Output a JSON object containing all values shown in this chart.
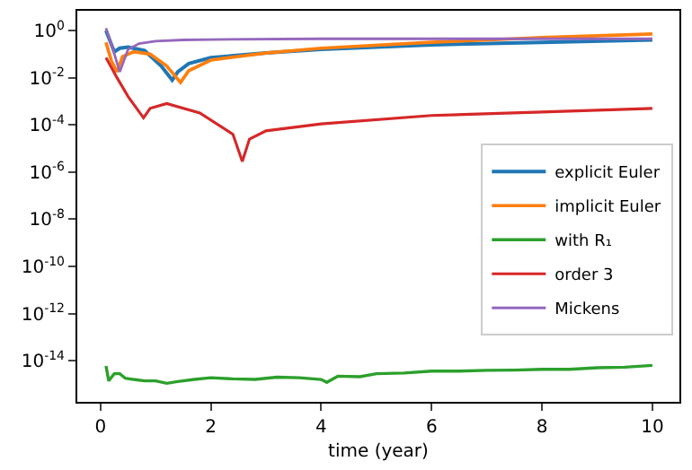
{
  "chart_data": {
    "type": "line",
    "xlabel": "time (year)",
    "log": "y",
    "legend": "right",
    "marker": "none",
    "line_style": "solid",
    "xlim": [
      -0.42,
      10.49
    ],
    "xticks": [
      0,
      2,
      4,
      6,
      8,
      10
    ],
    "ylim": [
      1.8e-16,
      6.9
    ],
    "yticks": [
      {
        "value": 1,
        "label": "10$^{0}$"
      },
      {
        "value": 0.01,
        "label": "10$^{-2}$"
      },
      {
        "value": 0.0001,
        "label": "10$^{-4}$"
      },
      {
        "value": 1e-06,
        "label": "10$^{-6}$"
      },
      {
        "value": 1e-08,
        "label": "10$^{-8}$"
      },
      {
        "value": 1e-10,
        "label": "10$^{-10}$"
      },
      {
        "value": 1e-12,
        "label": "10$^{-12}$"
      },
      {
        "value": 1e-14,
        "label": "10$^{-14}$"
      }
    ],
    "series": [
      {
        "name": "explicit Euler",
        "color": "#1f77b4",
        "x": [
          0.1,
          0.2,
          0.25,
          0.35,
          0.5,
          0.8,
          1.1,
          1.3,
          1.4,
          1.6,
          2,
          3,
          4,
          6,
          8,
          10
        ],
        "values": [
          1.0,
          0.25,
          0.126,
          0.178,
          0.2,
          0.141,
          0.0316,
          0.0079,
          0.0178,
          0.04,
          0.071,
          0.112,
          0.158,
          0.25,
          0.316,
          0.4
        ]
      },
      {
        "name": "implicit Euler",
        "color": "#ff7f0e",
        "x": [
          0.1,
          0.2,
          0.3,
          0.4,
          0.6,
          0.9,
          1.2,
          1.45,
          1.6,
          2,
          3,
          4,
          6,
          8,
          10
        ],
        "values": [
          0.316,
          0.05,
          0.0178,
          0.079,
          0.126,
          0.1,
          0.0316,
          0.0063,
          0.02,
          0.056,
          0.112,
          0.178,
          0.316,
          0.5,
          0.71
        ]
      },
      {
        "name": "with R₁",
        "color": "#2ca02c",
        "x": [
          0.1,
          0.15,
          0.25,
          0.35,
          0.45,
          0.6,
          0.8,
          1.0,
          1.2,
          1.4,
          1.7,
          2.0,
          2.4,
          2.8,
          3.2,
          3.6,
          4.0,
          4.1,
          4.3,
          4.7,
          5.0,
          5.5,
          6.0,
          6.5,
          7.0,
          7.5,
          8.0,
          8.5,
          9.0,
          9.5,
          10.0
        ],
        "values": [
          6e-15,
          1.4e-15,
          2.8e-15,
          2.8e-15,
          1.8e-15,
          1.6e-15,
          1.4e-15,
          1.4e-15,
          1.1e-15,
          1.3e-15,
          1.6e-15,
          1.9e-15,
          1.7e-15,
          1.6e-15,
          2e-15,
          1.9e-15,
          1.6e-15,
          1.2e-15,
          2.2e-15,
          2.1e-15,
          2.8e-15,
          3e-15,
          3.6e-15,
          3.6e-15,
          3.9e-15,
          4e-15,
          4.3e-15,
          4.3e-15,
          5e-15,
          5.3e-15,
          6.3e-15
        ]
      },
      {
        "name": "order 3",
        "color": "#d62728",
        "x": [
          0.1,
          0.3,
          0.5,
          0.78,
          0.9,
          1.2,
          1.8,
          2.4,
          2.57,
          2.7,
          3,
          4,
          6,
          8,
          10
        ],
        "values": [
          0.071,
          0.01,
          0.0016,
          0.0002,
          0.0005,
          0.0008,
          0.00032,
          4e-05,
          2.8e-06,
          2.5e-05,
          5.6e-05,
          0.00011,
          0.00025,
          0.00035,
          0.0005
        ]
      },
      {
        "name": "Mickens",
        "color": "#9467bd",
        "x": [
          0.1,
          0.2,
          0.35,
          0.5,
          0.7,
          1,
          1.5,
          2,
          4,
          6,
          8,
          10
        ],
        "values": [
          1.26,
          0.25,
          0.0178,
          0.158,
          0.28,
          0.355,
          0.4,
          0.417,
          0.447,
          0.447,
          0.447,
          0.447
        ]
      }
    ]
  }
}
